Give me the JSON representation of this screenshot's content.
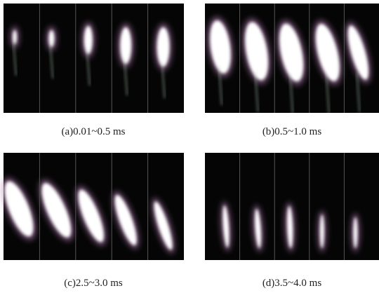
{
  "panels": [
    {
      "caption": "(a)0.01~0.5 ms"
    },
    {
      "caption": "(b)0.5~1.0 ms"
    },
    {
      "caption": "(c)2.5~3.0 ms"
    },
    {
      "caption": "(d)3.5~4.0 ms"
    }
  ]
}
